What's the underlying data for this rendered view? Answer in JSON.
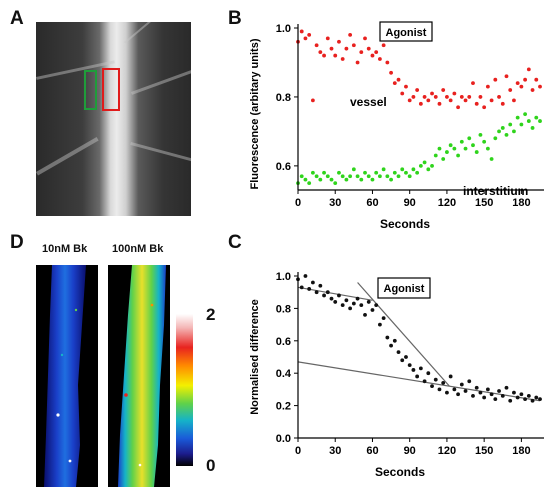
{
  "panels": {
    "a": "A",
    "b": "B",
    "c": "C",
    "d": "D"
  },
  "panel_d": {
    "conditions": [
      "10nM Bk",
      "100nM Bk"
    ],
    "colorbar": {
      "max": "2",
      "min": "0"
    }
  },
  "colors": {
    "vessel": "#e8211f",
    "interstitium": "#2fd41c",
    "roi_left": "#1f9d3a",
    "roi_right": "#e01b1b",
    "scatter_c": "#111111",
    "fit_lines": "#666666"
  },
  "chart_data": [
    {
      "panel": "B",
      "type": "scatter",
      "xlabel": "Seconds",
      "ylabel": "Fluorescence (arbitary units)",
      "xlim": [
        0,
        195
      ],
      "ylim": [
        0.53,
        1.0
      ],
      "xticks": [
        0,
        30,
        60,
        90,
        120,
        150,
        180
      ],
      "yticks": [
        0.6,
        0.8,
        1.0
      ],
      "ytick_labels": [
        "0.6",
        "0.8",
        "1.0"
      ],
      "annotation": "Agonist",
      "series": [
        {
          "name": "vessel",
          "x": [
            0,
            3,
            6,
            9,
            12,
            15,
            18,
            21,
            24,
            27,
            30,
            33,
            36,
            39,
            42,
            45,
            48,
            51,
            54,
            57,
            60,
            63,
            66,
            69,
            72,
            75,
            78,
            81,
            84,
            87,
            90,
            93,
            96,
            99,
            102,
            105,
            108,
            111,
            114,
            117,
            120,
            123,
            126,
            129,
            132,
            135,
            138,
            141,
            144,
            147,
            150,
            153,
            156,
            159,
            162,
            165,
            168,
            171,
            174,
            177,
            180,
            183,
            186,
            189,
            192,
            195
          ],
          "y": [
            0.96,
            0.99,
            0.97,
            0.98,
            0.79,
            0.95,
            0.93,
            0.92,
            0.97,
            0.94,
            0.92,
            0.96,
            0.91,
            0.94,
            0.98,
            0.95,
            0.9,
            0.93,
            0.97,
            0.94,
            0.92,
            0.93,
            0.91,
            0.95,
            0.9,
            0.87,
            0.84,
            0.85,
            0.81,
            0.83,
            0.79,
            0.8,
            0.82,
            0.78,
            0.8,
            0.79,
            0.81,
            0.8,
            0.78,
            0.82,
            0.8,
            0.79,
            0.81,
            0.77,
            0.8,
            0.79,
            0.8,
            0.84,
            0.78,
            0.8,
            0.77,
            0.83,
            0.79,
            0.85,
            0.8,
            0.78,
            0.86,
            0.82,
            0.79,
            0.84,
            0.83,
            0.85,
            0.88,
            0.82,
            0.85,
            0.83
          ]
        },
        {
          "name": "interstitium",
          "x": [
            0,
            3,
            6,
            9,
            12,
            15,
            18,
            21,
            24,
            27,
            30,
            33,
            36,
            39,
            42,
            45,
            48,
            51,
            54,
            57,
            60,
            63,
            66,
            69,
            72,
            75,
            78,
            81,
            84,
            87,
            90,
            93,
            96,
            99,
            102,
            105,
            108,
            111,
            114,
            117,
            120,
            123,
            126,
            129,
            132,
            135,
            138,
            141,
            144,
            147,
            150,
            153,
            156,
            159,
            162,
            165,
            168,
            171,
            174,
            177,
            180,
            183,
            186,
            189,
            192,
            195
          ],
          "y": [
            0.55,
            0.57,
            0.56,
            0.55,
            0.58,
            0.57,
            0.56,
            0.58,
            0.57,
            0.56,
            0.55,
            0.58,
            0.57,
            0.56,
            0.57,
            0.59,
            0.57,
            0.56,
            0.58,
            0.57,
            0.56,
            0.58,
            0.57,
            0.59,
            0.57,
            0.56,
            0.58,
            0.57,
            0.59,
            0.58,
            0.57,
            0.59,
            0.58,
            0.6,
            0.61,
            0.59,
            0.6,
            0.63,
            0.65,
            0.62,
            0.64,
            0.66,
            0.65,
            0.63,
            0.67,
            0.65,
            0.68,
            0.66,
            0.64,
            0.69,
            0.67,
            0.65,
            0.62,
            0.68,
            0.7,
            0.71,
            0.69,
            0.72,
            0.7,
            0.74,
            0.72,
            0.75,
            0.73,
            0.71,
            0.74,
            0.73
          ]
        }
      ],
      "series_labels": [
        "vessel",
        "interstitium"
      ]
    },
    {
      "panel": "C",
      "type": "scatter",
      "xlabel": "Seconds",
      "ylabel": "Normalised difference",
      "xlim": [
        0,
        195
      ],
      "ylim": [
        0,
        1.0
      ],
      "xticks": [
        0,
        30,
        60,
        90,
        120,
        150,
        180
      ],
      "yticks": [
        0.0,
        0.2,
        0.4,
        0.6,
        0.8,
        1.0
      ],
      "ytick_labels": [
        "0.0",
        "0.2",
        "0.4",
        "0.6",
        "0.8",
        "1.0"
      ],
      "annotation": "Agonist",
      "series": [
        {
          "x": [
            0,
            3,
            6,
            9,
            12,
            15,
            18,
            21,
            24,
            27,
            30,
            33,
            36,
            39,
            42,
            45,
            48,
            51,
            54,
            57,
            60,
            63,
            66,
            69,
            72,
            75,
            78,
            81,
            84,
            87,
            90,
            93,
            96,
            99,
            102,
            105,
            108,
            111,
            114,
            117,
            120,
            123,
            126,
            129,
            132,
            135,
            138,
            141,
            144,
            147,
            150,
            153,
            156,
            159,
            162,
            165,
            168,
            171,
            174,
            177,
            180,
            183,
            186,
            189,
            192,
            195
          ],
          "y": [
            0.98,
            0.93,
            1.0,
            0.92,
            0.96,
            0.9,
            0.94,
            0.88,
            0.9,
            0.86,
            0.84,
            0.88,
            0.82,
            0.85,
            0.8,
            0.83,
            0.86,
            0.82,
            0.76,
            0.84,
            0.79,
            0.82,
            0.7,
            0.74,
            0.62,
            0.57,
            0.6,
            0.53,
            0.48,
            0.5,
            0.45,
            0.42,
            0.38,
            0.43,
            0.35,
            0.4,
            0.32,
            0.36,
            0.3,
            0.34,
            0.28,
            0.38,
            0.3,
            0.27,
            0.33,
            0.29,
            0.35,
            0.26,
            0.31,
            0.28,
            0.25,
            0.3,
            0.27,
            0.24,
            0.29,
            0.26,
            0.31,
            0.23,
            0.28,
            0.25,
            0.27,
            0.24,
            0.26,
            0.23,
            0.25,
            0.24
          ]
        }
      ],
      "fit_lines": [
        {
          "x": [
            0,
            195
          ],
          "y": [
            0.47,
            0.23
          ]
        },
        {
          "x": [
            0,
            60
          ],
          "y": [
            0.93,
            0.85
          ]
        },
        {
          "x": [
            48,
            122
          ],
          "y": [
            0.96,
            0.32
          ]
        }
      ]
    }
  ]
}
